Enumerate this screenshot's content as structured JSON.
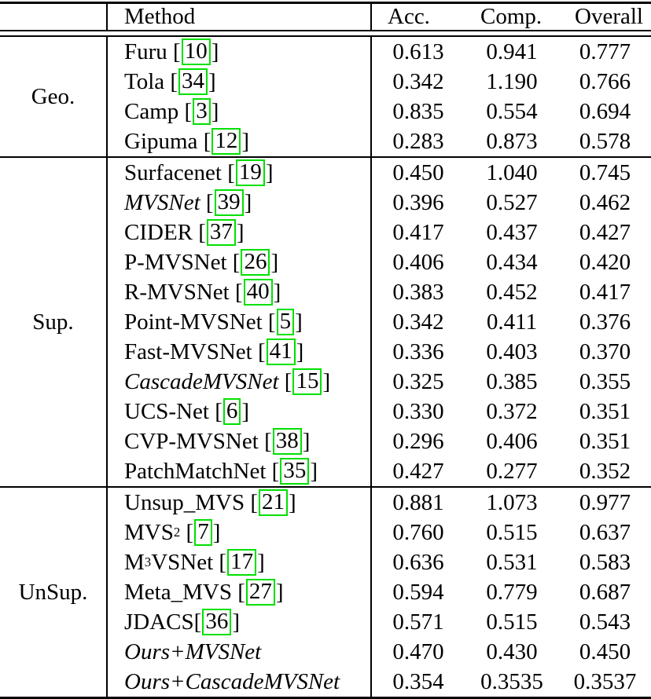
{
  "header": {
    "group": "",
    "method": "Method",
    "acc": "Acc.",
    "comp": "Comp.",
    "overall": "Overall"
  },
  "citation_box_color": "#00e000",
  "sections": [
    {
      "group": "Geo.",
      "rows": [
        {
          "segments": [
            {
              "t": "Furu",
              "s": "n"
            }
          ],
          "cite": "10",
          "acc": "0.613",
          "comp": "0.941",
          "overall": "0.777"
        },
        {
          "segments": [
            {
              "t": "Tola",
              "s": "n"
            }
          ],
          "cite": "34",
          "acc": "0.342",
          "comp": "1.190",
          "overall": "0.766"
        },
        {
          "segments": [
            {
              "t": "Camp",
              "s": "n"
            }
          ],
          "cite": "3",
          "acc": "0.835",
          "comp": "0.554",
          "overall": "0.694"
        },
        {
          "segments": [
            {
              "t": "Gipuma",
              "s": "n"
            }
          ],
          "cite": "12",
          "acc": "0.283",
          "comp": "0.873",
          "overall": "0.578"
        }
      ]
    },
    {
      "group": "Sup.",
      "rows": [
        {
          "segments": [
            {
              "t": "Surfacenet",
              "s": "n"
            }
          ],
          "cite": "19",
          "acc": "0.450",
          "comp": "1.040",
          "overall": "0.745"
        },
        {
          "segments": [
            {
              "t": "MVSNet",
              "s": "i"
            }
          ],
          "cite": "39",
          "acc": "0.396",
          "comp": "0.527",
          "overall": "0.462"
        },
        {
          "segments": [
            {
              "t": "CIDER",
              "s": "n"
            }
          ],
          "cite": "37",
          "acc": "0.417",
          "comp": "0.437",
          "overall": "0.427"
        },
        {
          "segments": [
            {
              "t": "P-MVSNet",
              "s": "n"
            }
          ],
          "cite": "26",
          "acc": "0.406",
          "comp": "0.434",
          "overall": "0.420"
        },
        {
          "segments": [
            {
              "t": "R-MVSNet",
              "s": "n"
            }
          ],
          "cite": "40",
          "acc": "0.383",
          "comp": "0.452",
          "overall": "0.417"
        },
        {
          "segments": [
            {
              "t": "Point-MVSNet",
              "s": "n"
            }
          ],
          "cite": "5",
          "acc": "0.342",
          "comp": "0.411",
          "overall": "0.376"
        },
        {
          "segments": [
            {
              "t": "Fast-MVSNet",
              "s": "n"
            }
          ],
          "cite": "41",
          "acc": "0.336",
          "comp": "0.403",
          "overall": "0.370"
        },
        {
          "segments": [
            {
              "t": "CascadeMVSNet",
              "s": "i"
            }
          ],
          "cite": "15",
          "acc": "0.325",
          "comp": "0.385",
          "overall": "0.355"
        },
        {
          "segments": [
            {
              "t": "UCS-Net",
              "s": "n"
            }
          ],
          "cite": "6",
          "acc": "0.330",
          "comp": "0.372",
          "overall": "0.351"
        },
        {
          "segments": [
            {
              "t": "CVP-MVSNet",
              "s": "n"
            }
          ],
          "cite": "38",
          "acc": "0.296",
          "comp": "0.406",
          "overall": "0.351"
        },
        {
          "segments": [
            {
              "t": "PatchMatchNet",
              "s": "n"
            }
          ],
          "cite": "35",
          "acc": "0.427",
          "comp": "0.277",
          "overall": "0.352"
        }
      ]
    },
    {
      "group": "UnSup.",
      "rows": [
        {
          "segments": [
            {
              "t": "Unsup_MVS",
              "s": "n"
            }
          ],
          "cite": "21",
          "acc": "0.881",
          "comp": "1.073",
          "overall": "0.977"
        },
        {
          "segments": [
            {
              "t": "MVS",
              "s": "n"
            },
            {
              "t": "2",
              "s": "sup"
            }
          ],
          "cite": "7",
          "acc": "0.760",
          "comp": "0.515",
          "overall": "0.637"
        },
        {
          "segments": [
            {
              "t": "M",
              "s": "n"
            },
            {
              "t": "3",
              "s": "sup"
            },
            {
              "t": "VSNet",
              "s": "n"
            }
          ],
          "cite": "17",
          "acc": "0.636",
          "comp": "0.531",
          "overall": "0.583"
        },
        {
          "segments": [
            {
              "t": "Meta_MVS",
              "s": "n"
            }
          ],
          "cite": "27",
          "acc": "0.594",
          "comp": "0.779",
          "overall": "0.687"
        },
        {
          "segments": [
            {
              "t": "JDACS",
              "s": "n"
            }
          ],
          "cite": "36",
          "cite_nospace": true,
          "acc": "0.571",
          "comp": "0.515",
          "overall": "0.543"
        },
        {
          "segments": [
            {
              "t": "Ours+MVSNet",
              "s": "i"
            }
          ],
          "cite": null,
          "acc": "0.470",
          "comp": "0.430",
          "overall": "0.450"
        },
        {
          "segments": [
            {
              "t": "Ours+CascadeMVSNet",
              "s": "i"
            }
          ],
          "cite": null,
          "acc": "0.354",
          "comp": "0.3535",
          "overall": "0.3537"
        }
      ]
    }
  ]
}
